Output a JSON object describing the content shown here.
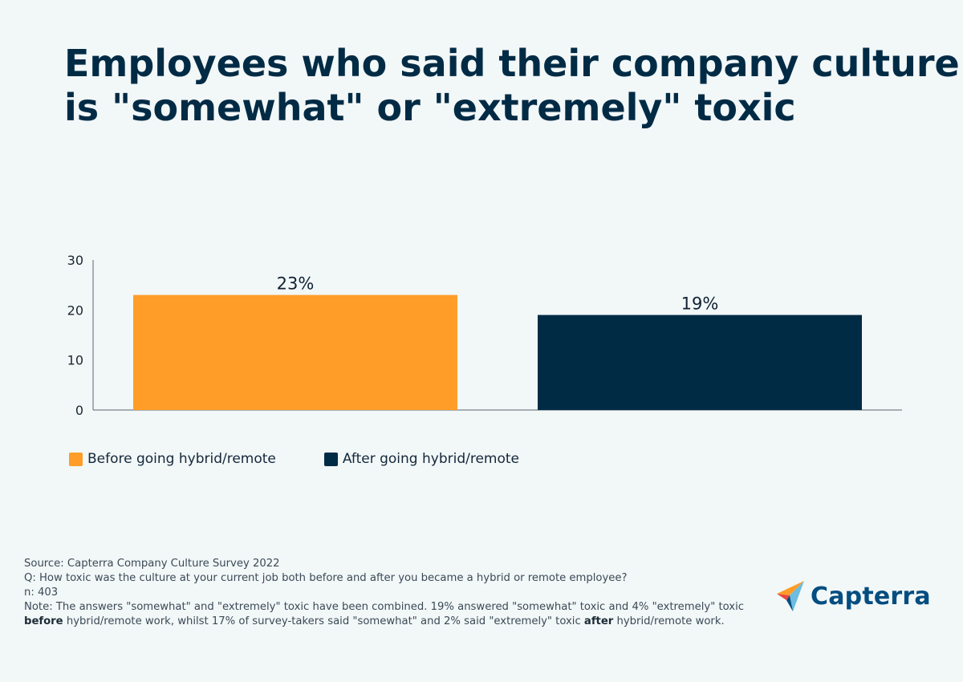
{
  "title_lines": [
    "Employees who said their company culture",
    "is \"somewhat\" or \"extremely\" toxic"
  ],
  "colors": {
    "before": "#ff9d28",
    "after": "#002b45",
    "text": "#012b45",
    "logo_blue": "#044d80"
  },
  "chart_data": {
    "type": "bar",
    "categories": [
      "Before going hybrid/remote",
      "After going hybrid/remote"
    ],
    "values": [
      23,
      19
    ],
    "data_labels": [
      "23%",
      "19%"
    ],
    "ylim": [
      0,
      30
    ],
    "yticks": [
      0,
      10,
      20,
      30
    ],
    "grid": false,
    "legend_position": "bottom-left"
  },
  "legend": [
    {
      "label": "Before going hybrid/remote",
      "color": "#ff9d28"
    },
    {
      "label": "After going hybrid/remote",
      "color": "#002b45"
    }
  ],
  "footer": {
    "source": "Source: Capterra Company Culture Survey 2022",
    "question": "Q: How toxic was the culture at your current job both before and after you became a hybrid or remote employee?",
    "n": "n: 403",
    "note_part1": "Note: The answers \"somewhat\" and \"extremely\" toxic have been combined. 19% answered \"somewhat\" toxic and 4% \"extremely\" toxic ",
    "note_bold1": "before",
    "note_part2": " hybrid/remote work, whilst 17% of survey-takers said \"somewhat\" and 2% said \"extremely\" toxic ",
    "note_bold2": "after",
    "note_part3": " hybrid/remote work."
  },
  "logo": {
    "text": "Capterra"
  }
}
